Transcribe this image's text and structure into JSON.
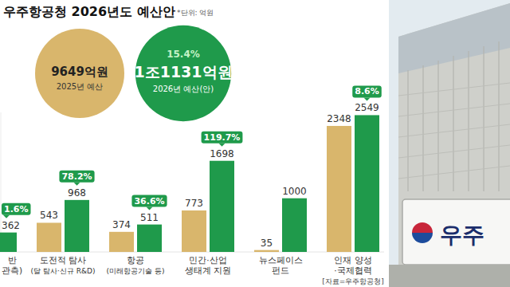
{
  "title": "우주항공청 2026년도 예산안",
  "unit_note": "*단위: 억원",
  "source": "[자료=우주항공청]",
  "image": {
    "sign_text": "우주"
  },
  "chart_data": {
    "type": "bar",
    "categories": [
      "반\n관측)",
      "도전적 탐사\n(달 탐사·신규 R&D)",
      "항공\n(미래항공기술 등)",
      "민간·산업\n생태계 지원",
      "뉴스페이스\n펀드",
      "인재 양성\n·국제협력"
    ],
    "series": [
      {
        "name": "2025년 예산",
        "color": "#d9b66c",
        "values": [
          null,
          543,
          374,
          773,
          35,
          2348
        ]
      },
      {
        "name": "2026년 예산(안)",
        "color": "#1f9a4b",
        "values": [
          362,
          968,
          511,
          1698,
          1000,
          2549
        ]
      }
    ],
    "growth": [
      1.6,
      78.2,
      36.6,
      119.7,
      null,
      8.6
    ],
    "growth_labels": [
      "1.6%",
      "78.2%",
      "36.6%",
      "119.7%",
      null,
      "8.6%"
    ],
    "totals": [
      9649,
      11131
    ],
    "total_labels": [
      "9649억원",
      "1조1131억원"
    ],
    "total_growth": 15.4,
    "total_growth_label": "15.4%",
    "ylim": [
      0,
      2600
    ],
    "yticks": [
      0
    ],
    "grid": false,
    "data_labels": true,
    "tick_labels": "x"
  }
}
